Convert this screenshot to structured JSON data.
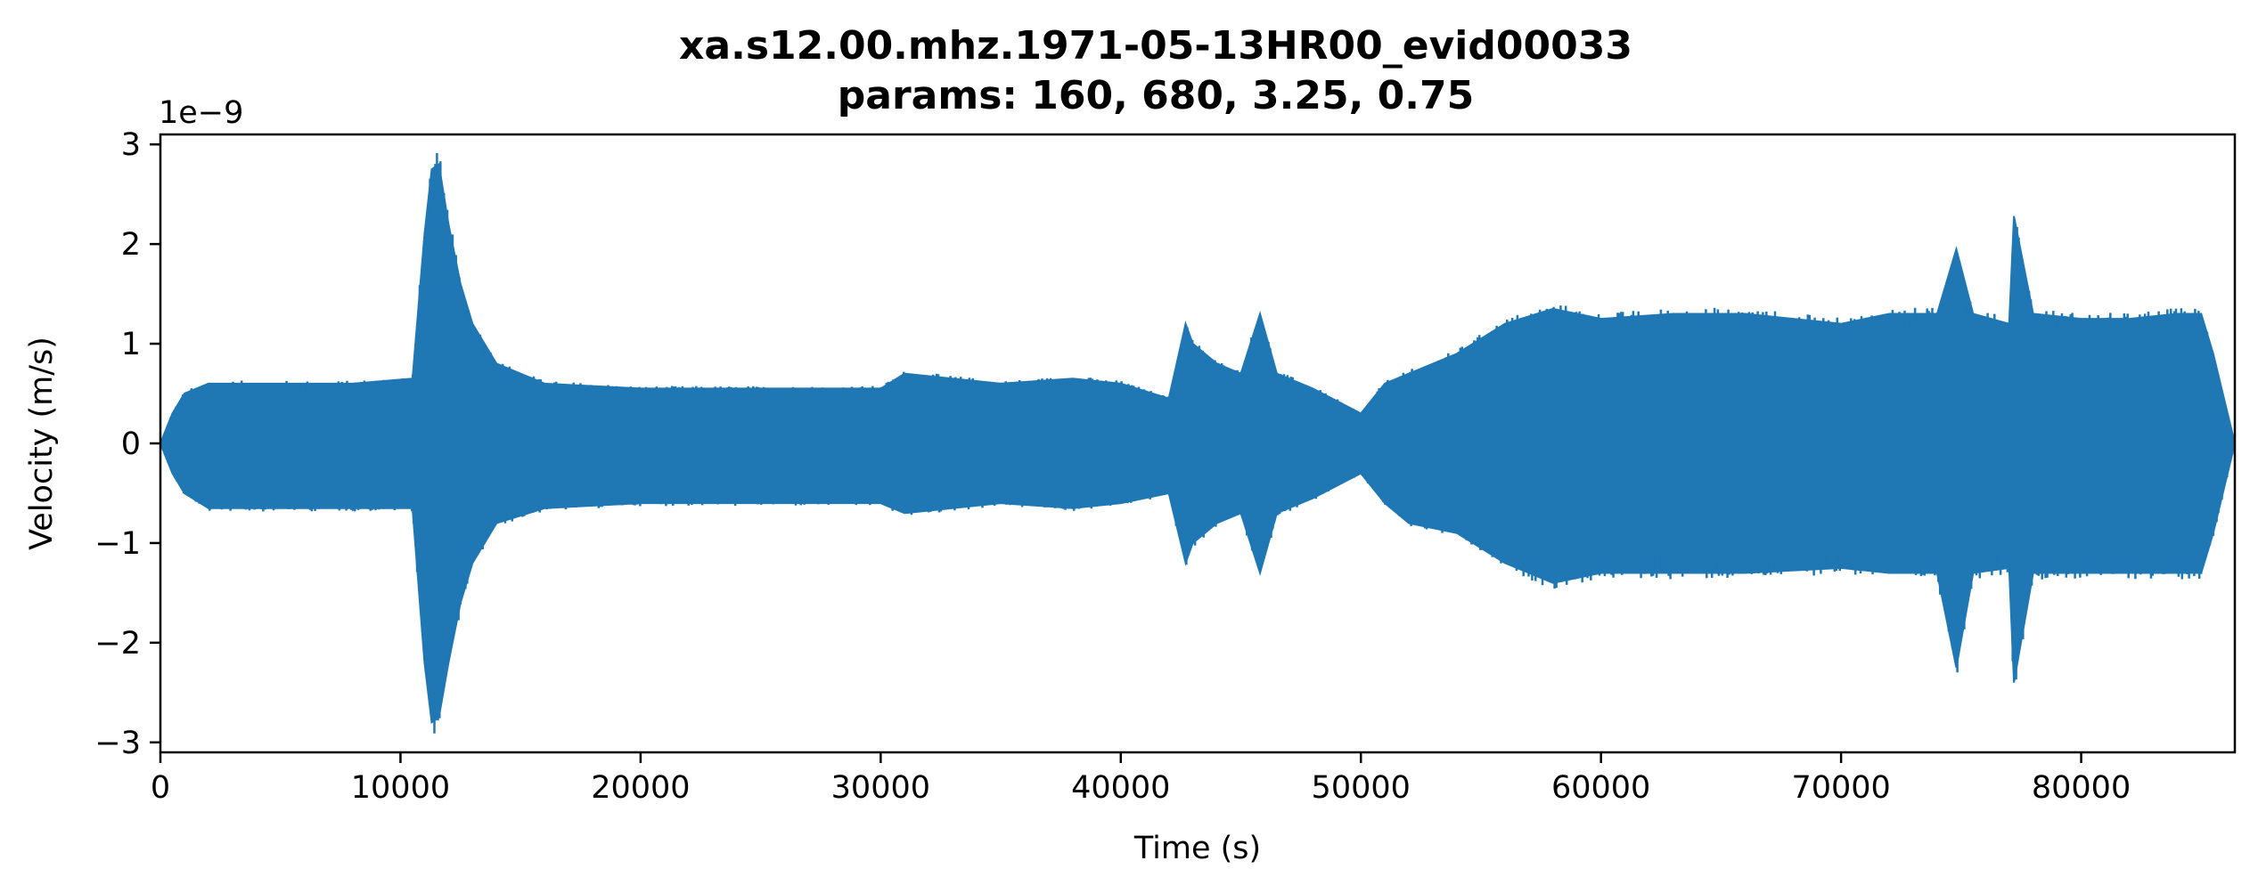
{
  "chart_data": {
    "type": "line",
    "title": "xa.s12.00.mhz.1971-05-13HR00_evid00033",
    "subtitle": "params: 160, 680, 3.25, 0.75",
    "xlabel": "Time (s)",
    "ylabel": "Velocity (m/s)",
    "y_offset_label": "1e−9",
    "xlim": [
      0,
      86400
    ],
    "ylim": [
      -3.1,
      3.1
    ],
    "y_scale_factor": 1e-09,
    "x_ticks": [
      0,
      10000,
      20000,
      30000,
      40000,
      50000,
      60000,
      70000,
      80000
    ],
    "x_tick_labels": [
      "0",
      "10000",
      "20000",
      "30000",
      "40000",
      "50000",
      "60000",
      "70000",
      "80000"
    ],
    "y_ticks": [
      3,
      2,
      1,
      0,
      -1,
      -2,
      -3
    ],
    "y_tick_labels": [
      "3",
      "2",
      "1",
      "0",
      "−1",
      "−2",
      "−3"
    ],
    "grid": false,
    "series": [
      {
        "color": "#1f77b4",
        "envelope_x": [
          0,
          500,
          1000,
          2000,
          5000,
          8000,
          10500,
          11000,
          11300,
          11600,
          12000,
          12500,
          13000,
          14000,
          16000,
          20000,
          25000,
          30000,
          31000,
          35000,
          38000,
          40000,
          42000,
          42700,
          43000,
          44000,
          45000,
          45800,
          46500,
          48000,
          50000,
          51000,
          52000,
          54000,
          56000,
          58000,
          60000,
          63000,
          66000,
          70000,
          72000,
          74000,
          74800,
          75500,
          77000,
          77200,
          78000,
          80000,
          82000,
          84000,
          85000,
          85500,
          86000,
          86400
        ],
        "envelope_upper": [
          0.0,
          0.3,
          0.5,
          0.6,
          0.6,
          0.6,
          0.65,
          2.1,
          2.75,
          2.8,
          2.2,
          1.6,
          1.2,
          0.8,
          0.6,
          0.55,
          0.55,
          0.55,
          0.7,
          0.6,
          0.65,
          0.6,
          0.45,
          1.2,
          1.0,
          0.8,
          0.7,
          1.3,
          0.7,
          0.55,
          0.3,
          0.6,
          0.7,
          0.9,
          1.2,
          1.35,
          1.25,
          1.3,
          1.3,
          1.2,
          1.3,
          1.3,
          1.95,
          1.3,
          1.2,
          2.28,
          1.3,
          1.25,
          1.25,
          1.3,
          1.3,
          0.9,
          0.4,
          0.0
        ],
        "envelope_lower": [
          0.0,
          -0.3,
          -0.5,
          -0.65,
          -0.65,
          -0.65,
          -0.65,
          -2.2,
          -2.8,
          -2.75,
          -2.2,
          -1.6,
          -1.2,
          -0.8,
          -0.65,
          -0.6,
          -0.6,
          -0.6,
          -0.7,
          -0.6,
          -0.65,
          -0.6,
          -0.5,
          -1.2,
          -1.0,
          -0.8,
          -0.7,
          -1.3,
          -0.7,
          -0.55,
          -0.3,
          -0.6,
          -0.8,
          -0.9,
          -1.2,
          -1.4,
          -1.3,
          -1.3,
          -1.3,
          -1.25,
          -1.3,
          -1.3,
          -2.25,
          -1.3,
          -1.25,
          -2.4,
          -1.3,
          -1.3,
          -1.3,
          -1.3,
          -1.3,
          -0.9,
          -0.4,
          0.0
        ]
      }
    ]
  }
}
